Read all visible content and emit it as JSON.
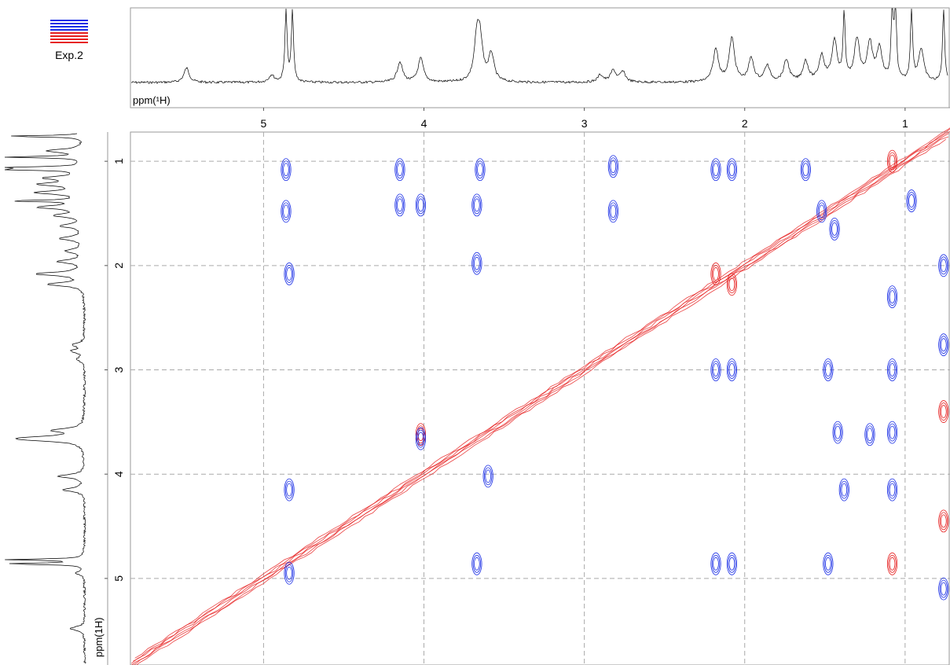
{
  "legend": {
    "label": "Exp.2",
    "line_colors": [
      "#1a2ee6",
      "#1a2ee6",
      "#1a2ee6",
      "#1a2ee6",
      "#e62020",
      "#e62020",
      "#e62020",
      "#e62020"
    ]
  },
  "chart_data": {
    "type": "contour",
    "xlabel": "ppm(¹H)",
    "ylabel": "ppm(1H)",
    "xlim": [
      5.83,
      0.72
    ],
    "ylim": [
      0.72,
      5.83
    ],
    "x_ticks": [
      "5",
      "4",
      "3",
      "2",
      "1"
    ],
    "x_tick_values": [
      5,
      4,
      3,
      2,
      1
    ],
    "y_ticks": [
      "1",
      "2",
      "3",
      "4",
      "5"
    ],
    "y_tick_values": [
      1,
      2,
      3,
      4,
      5
    ],
    "grid": true,
    "colors": {
      "positive": "#e62020",
      "negative": "#1a2ee6",
      "projection": "#000000"
    },
    "projection_peaks": [
      {
        "ppm": 5.48,
        "height": 0.2
      },
      {
        "ppm": 4.95,
        "height": 0.1
      },
      {
        "ppm": 4.86,
        "height": 1.0
      },
      {
        "ppm": 4.82,
        "height": 0.98
      },
      {
        "ppm": 4.15,
        "height": 0.28
      },
      {
        "ppm": 4.02,
        "height": 0.33
      },
      {
        "ppm": 3.67,
        "height": 0.55
      },
      {
        "ppm": 3.65,
        "height": 0.5
      },
      {
        "ppm": 3.58,
        "height": 0.38
      },
      {
        "ppm": 2.9,
        "height": 0.1
      },
      {
        "ppm": 2.82,
        "height": 0.16
      },
      {
        "ppm": 2.76,
        "height": 0.14
      },
      {
        "ppm": 2.18,
        "height": 0.45
      },
      {
        "ppm": 2.08,
        "height": 0.6
      },
      {
        "ppm": 1.96,
        "height": 0.32
      },
      {
        "ppm": 1.86,
        "height": 0.22
      },
      {
        "ppm": 1.74,
        "height": 0.3
      },
      {
        "ppm": 1.62,
        "height": 0.28
      },
      {
        "ppm": 1.52,
        "height": 0.35
      },
      {
        "ppm": 1.44,
        "height": 0.55
      },
      {
        "ppm": 1.38,
        "height": 0.9
      },
      {
        "ppm": 1.3,
        "height": 0.58
      },
      {
        "ppm": 1.22,
        "height": 0.52
      },
      {
        "ppm": 1.16,
        "height": 0.45
      },
      {
        "ppm": 1.08,
        "height": 1.0
      },
      {
        "ppm": 1.06,
        "height": 1.0
      },
      {
        "ppm": 0.96,
        "height": 1.0
      },
      {
        "ppm": 0.9,
        "height": 0.45
      },
      {
        "ppm": 0.76,
        "height": 1.0
      }
    ],
    "cross_peaks": [
      {
        "x": 4.86,
        "y": 1.08,
        "sign": "neg"
      },
      {
        "x": 4.86,
        "y": 1.48,
        "sign": "neg"
      },
      {
        "x": 4.84,
        "y": 2.08,
        "sign": "neg"
      },
      {
        "x": 4.84,
        "y": 4.15,
        "sign": "neg"
      },
      {
        "x": 4.84,
        "y": 4.95,
        "sign": "neg"
      },
      {
        "x": 4.15,
        "y": 1.08,
        "sign": "neg"
      },
      {
        "x": 4.15,
        "y": 1.42,
        "sign": "neg"
      },
      {
        "x": 4.02,
        "y": 1.42,
        "sign": "neg"
      },
      {
        "x": 4.02,
        "y": 3.62,
        "sign": "pos"
      },
      {
        "x": 4.02,
        "y": 3.66,
        "sign": "neg"
      },
      {
        "x": 3.65,
        "y": 1.08,
        "sign": "neg"
      },
      {
        "x": 3.67,
        "y": 1.42,
        "sign": "neg"
      },
      {
        "x": 3.67,
        "y": 1.98,
        "sign": "neg"
      },
      {
        "x": 3.6,
        "y": 4.02,
        "sign": "neg"
      },
      {
        "x": 3.67,
        "y": 4.86,
        "sign": "neg"
      },
      {
        "x": 2.82,
        "y": 1.05,
        "sign": "neg"
      },
      {
        "x": 2.82,
        "y": 1.48,
        "sign": "neg"
      },
      {
        "x": 2.18,
        "y": 1.08,
        "sign": "neg"
      },
      {
        "x": 2.08,
        "y": 1.08,
        "sign": "neg"
      },
      {
        "x": 2.18,
        "y": 2.08,
        "sign": "pos"
      },
      {
        "x": 2.08,
        "y": 2.18,
        "sign": "pos"
      },
      {
        "x": 2.18,
        "y": 3.0,
        "sign": "neg"
      },
      {
        "x": 2.08,
        "y": 3.0,
        "sign": "neg"
      },
      {
        "x": 2.18,
        "y": 4.86,
        "sign": "neg"
      },
      {
        "x": 2.08,
        "y": 4.86,
        "sign": "neg"
      },
      {
        "x": 1.62,
        "y": 1.08,
        "sign": "neg"
      },
      {
        "x": 1.52,
        "y": 1.48,
        "sign": "neg"
      },
      {
        "x": 1.44,
        "y": 1.65,
        "sign": "neg"
      },
      {
        "x": 1.48,
        "y": 3.0,
        "sign": "neg"
      },
      {
        "x": 1.42,
        "y": 3.6,
        "sign": "neg"
      },
      {
        "x": 1.38,
        "y": 4.15,
        "sign": "neg"
      },
      {
        "x": 1.48,
        "y": 4.86,
        "sign": "neg"
      },
      {
        "x": 1.22,
        "y": 3.62,
        "sign": "neg"
      },
      {
        "x": 1.08,
        "y": 1.0,
        "sign": "pos"
      },
      {
        "x": 1.08,
        "y": 2.3,
        "sign": "neg"
      },
      {
        "x": 1.08,
        "y": 3.0,
        "sign": "neg"
      },
      {
        "x": 1.08,
        "y": 3.6,
        "sign": "neg"
      },
      {
        "x": 1.08,
        "y": 4.15,
        "sign": "neg"
      },
      {
        "x": 1.08,
        "y": 4.86,
        "sign": "pos"
      },
      {
        "x": 0.96,
        "y": 1.38,
        "sign": "neg"
      },
      {
        "x": 0.76,
        "y": 2.0,
        "sign": "neg"
      },
      {
        "x": 0.76,
        "y": 2.76,
        "sign": "neg"
      },
      {
        "x": 0.76,
        "y": 3.4,
        "sign": "pos"
      },
      {
        "x": 0.76,
        "y": 4.45,
        "sign": "pos"
      },
      {
        "x": 0.76,
        "y": 5.1,
        "sign": "neg"
      }
    ]
  }
}
